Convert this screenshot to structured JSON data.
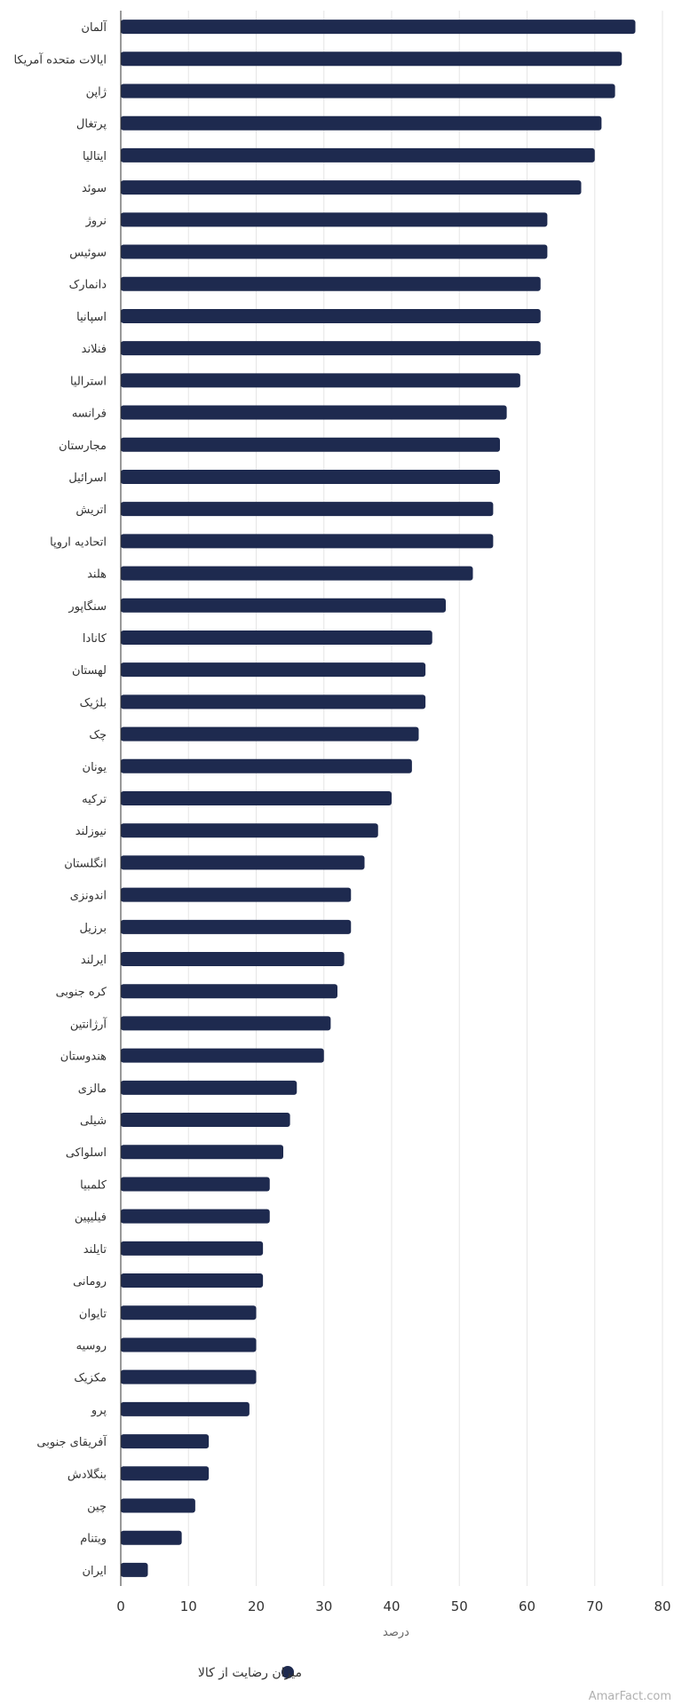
{
  "chart_data": {
    "type": "bar",
    "orientation": "horizontal",
    "categories": [
      "آلمان",
      "ایالات متحده آمریکا",
      "ژاپن",
      "پرتغال",
      "ایتالیا",
      "سوئد",
      "نروژ",
      "سوئیس",
      "دانمارک",
      "اسپانیا",
      "فنلاند",
      "استرالیا",
      "فرانسه",
      "مجارستان",
      "اسرائیل",
      "اتریش",
      "اتحادیه اروپا",
      "هلند",
      "سنگاپور",
      "کانادا",
      "لهستان",
      "بلژیک",
      "چک",
      "یونان",
      "ترکیه",
      "نیوزلند",
      "انگلستان",
      "اندونزی",
      "برزیل",
      "ایرلند",
      "کره جنوبی",
      "آرژانتین",
      "هندوستان",
      "مالزی",
      "شیلی",
      "اسلواکی",
      "کلمبیا",
      "فیلیپین",
      "تایلند",
      "رومانی",
      "تایوان",
      "روسیه",
      "مکزیک",
      "پرو",
      "آفریقای جنوبی",
      "بنگلادش",
      "چین",
      "ویتنام",
      "ایران"
    ],
    "series": [
      {
        "name": "میزان رضایت از کالا",
        "values": [
          76,
          74,
          73,
          71,
          70,
          68,
          63,
          63,
          62,
          62,
          62,
          59,
          57,
          56,
          56,
          55,
          55,
          52,
          48,
          46,
          45,
          45,
          44,
          43,
          40,
          38,
          36,
          34,
          34,
          33,
          32,
          31,
          30,
          26,
          25,
          24,
          22,
          22,
          21,
          21,
          20,
          20,
          20,
          19,
          13,
          13,
          11,
          9,
          4
        ]
      }
    ],
    "xlabel": "درصد",
    "ylabel": "",
    "xlim": [
      0,
      80
    ],
    "ticks": [
      0,
      10,
      20,
      30,
      40,
      50,
      60,
      70,
      80
    ],
    "grid": true,
    "legend_position": "bottom-center",
    "bar_color": "#1e2a4f"
  },
  "watermark": "AmarFact.com"
}
